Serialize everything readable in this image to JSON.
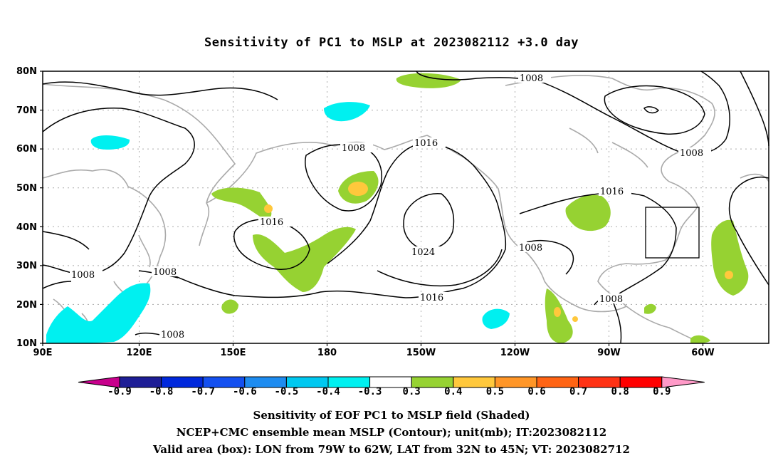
{
  "title": "Sensitivity of PC1 to MSLP at 2023082112 +3.0 day",
  "lat_labels": [
    "80N",
    "70N",
    "60N",
    "50N",
    "40N",
    "30N",
    "20N",
    "10N"
  ],
  "lon_labels": [
    "90E",
    "120E",
    "150E",
    "180",
    "150W",
    "120W",
    "90W",
    "60W"
  ],
  "contour_labels": [
    "1008",
    "1008",
    "1016",
    "1016",
    "1024",
    "1016",
    "1008",
    "1008",
    "1008",
    "1016",
    "1008",
    "1008",
    "1008"
  ],
  "colorbar": {
    "labels": [
      "-0.9",
      "-0.8",
      "-0.7",
      "-0.6",
      "-0.5",
      "-0.4",
      "-0.3",
      "0.3",
      "0.4",
      "0.5",
      "0.6",
      "0.7",
      "0.8",
      "0.9"
    ],
    "colors": [
      "#c8008c",
      "#1e1e96",
      "#0028dc",
      "#1450f0",
      "#1e8cf0",
      "#00c8f0",
      "#00f0f0",
      "#ffffff",
      "#96d232",
      "#ffc83c",
      "#ff9628",
      "#ff6414",
      "#ff3214",
      "#ff0000",
      "#ff9ac8"
    ]
  },
  "captions": {
    "line1": "Sensitivity of EOF PC1 to MSLP field (Shaded)",
    "line2": "NCEP+CMC ensemble mean MSLP (Contour); unit(mb); IT:2023082112",
    "line3": "Valid area (box): LON from 79W to 62W, LAT from 32N to 45N; VT: 2023082712"
  }
}
